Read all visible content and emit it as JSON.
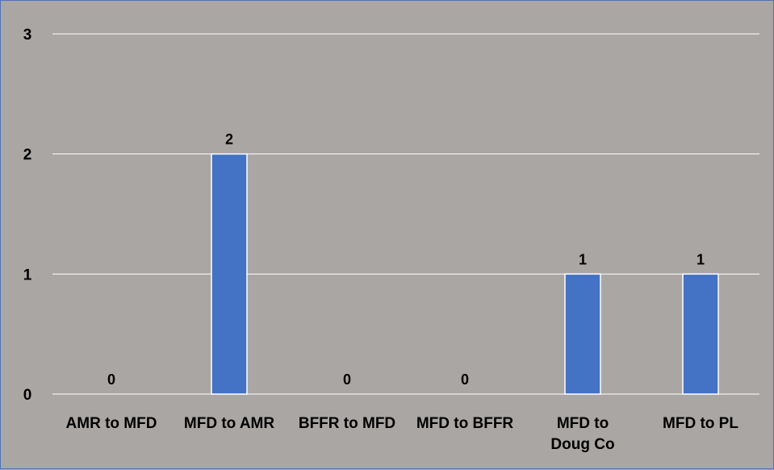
{
  "chart_data": {
    "type": "bar",
    "categories": [
      [
        "AMR to MFD"
      ],
      [
        "MFD to AMR"
      ],
      [
        "BFFR to MFD"
      ],
      [
        "MFD to BFFR"
      ],
      [
        "MFD to",
        "Doug Co"
      ],
      [
        "MFD to PL"
      ]
    ],
    "values": [
      0,
      2,
      0,
      0,
      1,
      1
    ],
    "data_labels": [
      "0",
      "2",
      "0",
      "0",
      "1",
      "1"
    ],
    "yticks": [
      "0",
      "1",
      "2",
      "3"
    ],
    "ylim": [
      0,
      3
    ],
    "grid": true,
    "legend": "none",
    "title": "",
    "xlabel": "",
    "ylabel": ""
  },
  "colors": {
    "background": "#aaa6a4",
    "bar": "#4472c4",
    "bar_edge": "#ffffff",
    "grid": "#ffffff",
    "border": "#4f73b6",
    "text": "#000000"
  }
}
